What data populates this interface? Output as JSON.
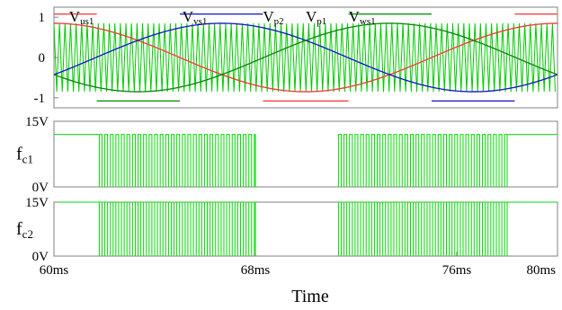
{
  "chart_data": {
    "type": "line",
    "x_unit": "ms",
    "x_range": [
      60,
      80
    ],
    "x_tick_labels": [
      "60ms",
      "68ms",
      "76ms",
      "80ms"
    ],
    "x_ticks": [
      60,
      68,
      76,
      80
    ],
    "xlabel": "Time",
    "grid": false,
    "panels": [
      {
        "id": "top",
        "ylim": [
          -1.25,
          1.25
        ],
        "y_ticks": [
          {
            "value": 1,
            "label": "1"
          },
          {
            "value": 0,
            "label": "0"
          },
          {
            "value": -1,
            "label": "-1"
          }
        ],
        "carrier": {
          "color": "#00cc00",
          "amplitude": 0.85,
          "period_ms": 0.22
        },
        "series": [
          {
            "key": "u",
            "color": "#ff3333",
            "phase_deg": 90,
            "amplitude": 1.0
          },
          {
            "key": "v",
            "color": "#1111cc",
            "phase_deg": -30,
            "amplitude": 1.0
          },
          {
            "key": "w",
            "color": "#008800",
            "phase_deg": 210,
            "amplitude": 1.0
          }
        ],
        "period_ms": 20,
        "labels": [
          {
            "main": "V",
            "sub": "us1",
            "x": 60.6
          },
          {
            "main": "V",
            "sub": "vs1",
            "x": 65.1
          },
          {
            "main": "V",
            "sub": "p2",
            "x": 68.3
          },
          {
            "main": "V",
            "sub": "p1",
            "x": 70.0
          },
          {
            "main": "V",
            "sub": "ws1",
            "x": 71.7
          }
        ]
      },
      {
        "id": "fc1",
        "name_main": "f",
        "name_sub": "c1",
        "color": "#00dd00",
        "ylim": [
          0,
          15
        ],
        "y_ticks": [
          {
            "value": 15,
            "label": "15V"
          },
          {
            "value": 0,
            "label": "0V"
          }
        ],
        "high": 12,
        "constant_high": [
          [
            60,
            61.8
          ],
          [
            78.0,
            80
          ]
        ],
        "pwm_windows": [
          [
            61.8,
            68.0
          ],
          [
            71.3,
            78.0
          ]
        ],
        "pwm_period_ms": 0.22,
        "pwm_duty": 0.5
      },
      {
        "id": "fc2",
        "name_main": "f",
        "name_sub": "c2",
        "color": "#00dd00",
        "ylim": [
          0,
          15
        ],
        "y_ticks": [
          {
            "value": 15,
            "label": "15V"
          },
          {
            "value": 0,
            "label": "0V"
          }
        ],
        "high": 15,
        "constant_high": [
          [
            60,
            61.8
          ],
          [
            78.0,
            80
          ]
        ],
        "pwm_windows": [
          [
            61.8,
            68.0
          ],
          [
            71.3,
            78.0
          ]
        ],
        "pwm_period_ms": 0.22,
        "pwm_duty": 0.5
      }
    ]
  }
}
